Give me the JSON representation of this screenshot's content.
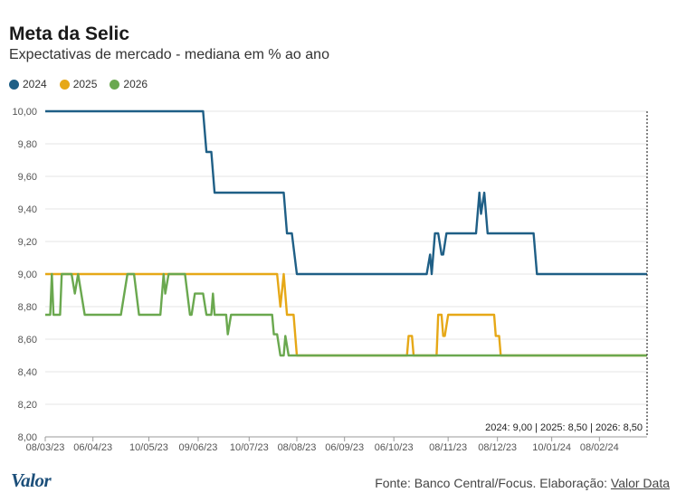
{
  "header": {
    "title": "Meta da Selic",
    "subtitle": "Expectativas de mercado - mediana em % ao ano"
  },
  "footer": {
    "logo": "Valor",
    "source": "Fonte: Banco Central/Focus. Elaboração: ",
    "source_link": "Valor Data"
  },
  "colors": {
    "2024": "#1f5f86",
    "2025": "#e6a817",
    "2026": "#6aa84f"
  },
  "chart_data": {
    "type": "line",
    "title": "Meta da Selic",
    "subtitle": "Expectativas de mercado - mediana em % ao ano",
    "ylim": [
      8.0,
      10.0
    ],
    "yticks": [
      "10,00",
      "9,80",
      "9,60",
      "9,40",
      "9,20",
      "9,00",
      "8,80",
      "8,60",
      "8,40",
      "8,20",
      "8,00"
    ],
    "xlim": [
      "2023-03-08",
      "2024-03-08"
    ],
    "xticks": [
      {
        "date": "2023-03-08",
        "label": "08/03/23"
      },
      {
        "date": "2023-04-06",
        "label": "06/04/23"
      },
      {
        "date": "2023-05-10",
        "label": "10/05/23"
      },
      {
        "date": "2023-06-09",
        "label": "09/06/23"
      },
      {
        "date": "2023-07-10",
        "label": "10/07/23"
      },
      {
        "date": "2023-08-08",
        "label": "08/08/23"
      },
      {
        "date": "2023-09-06",
        "label": "06/09/23"
      },
      {
        "date": "2023-10-06",
        "label": "06/10/23"
      },
      {
        "date": "2023-11-08",
        "label": "08/11/23"
      },
      {
        "date": "2023-12-08",
        "label": "08/12/23"
      },
      {
        "date": "2024-01-10",
        "label": "10/01/24"
      },
      {
        "date": "2024-02-08",
        "label": "08/02/24"
      }
    ],
    "grid": true,
    "legend_position": "top-left",
    "annotation": "2024: 9,00 | 2025: 8,50 | 2026: 8,50",
    "series": [
      {
        "name": "2024",
        "points": [
          [
            "2023-03-08",
            10.0
          ],
          [
            "2023-06-12",
            10.0
          ],
          [
            "2023-06-14",
            9.75
          ],
          [
            "2023-06-17",
            9.75
          ],
          [
            "2023-06-19",
            9.5
          ],
          [
            "2023-07-31",
            9.5
          ],
          [
            "2023-08-02",
            9.25
          ],
          [
            "2023-08-05",
            9.25
          ],
          [
            "2023-08-08",
            9.0
          ],
          [
            "2023-10-26",
            9.0
          ],
          [
            "2023-10-28",
            9.12
          ],
          [
            "2023-10-29",
            9.0
          ],
          [
            "2023-10-31",
            9.25
          ],
          [
            "2023-11-02",
            9.25
          ],
          [
            "2023-11-04",
            9.12
          ],
          [
            "2023-11-05",
            9.12
          ],
          [
            "2023-11-07",
            9.25
          ],
          [
            "2023-11-25",
            9.25
          ],
          [
            "2023-11-27",
            9.5
          ],
          [
            "2023-11-28",
            9.37
          ],
          [
            "2023-11-30",
            9.5
          ],
          [
            "2023-12-02",
            9.25
          ],
          [
            "2023-12-30",
            9.25
          ],
          [
            "2024-01-01",
            9.0
          ],
          [
            "2024-03-08",
            9.0
          ]
        ]
      },
      {
        "name": "2025",
        "points": [
          [
            "2023-03-08",
            9.0
          ],
          [
            "2023-07-27",
            9.0
          ],
          [
            "2023-07-29",
            8.8
          ],
          [
            "2023-07-31",
            9.0
          ],
          [
            "2023-08-02",
            8.75
          ],
          [
            "2023-08-06",
            8.75
          ],
          [
            "2023-08-08",
            8.5
          ],
          [
            "2023-10-14",
            8.5
          ],
          [
            "2023-10-15",
            8.62
          ],
          [
            "2023-10-17",
            8.62
          ],
          [
            "2023-10-18",
            8.5
          ],
          [
            "2023-11-01",
            8.5
          ],
          [
            "2023-11-02",
            8.75
          ],
          [
            "2023-11-04",
            8.75
          ],
          [
            "2023-11-05",
            8.62
          ],
          [
            "2023-11-06",
            8.62
          ],
          [
            "2023-11-08",
            8.75
          ],
          [
            "2023-12-06",
            8.75
          ],
          [
            "2023-12-07",
            8.62
          ],
          [
            "2023-12-09",
            8.62
          ],
          [
            "2023-12-10",
            8.5
          ],
          [
            "2024-03-08",
            8.5
          ]
        ]
      },
      {
        "name": "2026",
        "points": [
          [
            "2023-03-08",
            8.75
          ],
          [
            "2023-03-11",
            8.75
          ],
          [
            "2023-03-12",
            9.0
          ],
          [
            "2023-03-13",
            8.75
          ],
          [
            "2023-03-17",
            8.75
          ],
          [
            "2023-03-18",
            9.0
          ],
          [
            "2023-03-24",
            9.0
          ],
          [
            "2023-03-26",
            8.88
          ],
          [
            "2023-03-28",
            9.0
          ],
          [
            "2023-04-01",
            8.75
          ],
          [
            "2023-04-23",
            8.75
          ],
          [
            "2023-04-27",
            9.0
          ],
          [
            "2023-05-01",
            9.0
          ],
          [
            "2023-05-04",
            8.75
          ],
          [
            "2023-05-17",
            8.75
          ],
          [
            "2023-05-19",
            9.0
          ],
          [
            "2023-05-20",
            8.88
          ],
          [
            "2023-05-22",
            9.0
          ],
          [
            "2023-06-01",
            9.0
          ],
          [
            "2023-06-04",
            8.75
          ],
          [
            "2023-06-05",
            8.75
          ],
          [
            "2023-06-07",
            8.88
          ],
          [
            "2023-06-12",
            8.88
          ],
          [
            "2023-06-14",
            8.75
          ],
          [
            "2023-06-17",
            8.75
          ],
          [
            "2023-06-18",
            8.88
          ],
          [
            "2023-06-19",
            8.75
          ],
          [
            "2023-06-26",
            8.75
          ],
          [
            "2023-06-27",
            8.63
          ],
          [
            "2023-06-29",
            8.75
          ],
          [
            "2023-07-24",
            8.75
          ],
          [
            "2023-07-25",
            8.63
          ],
          [
            "2023-07-27",
            8.63
          ],
          [
            "2023-07-29",
            8.5
          ],
          [
            "2023-07-31",
            8.5
          ],
          [
            "2023-08-01",
            8.62
          ],
          [
            "2023-08-03",
            8.5
          ],
          [
            "2024-03-08",
            8.5
          ]
        ]
      }
    ]
  }
}
